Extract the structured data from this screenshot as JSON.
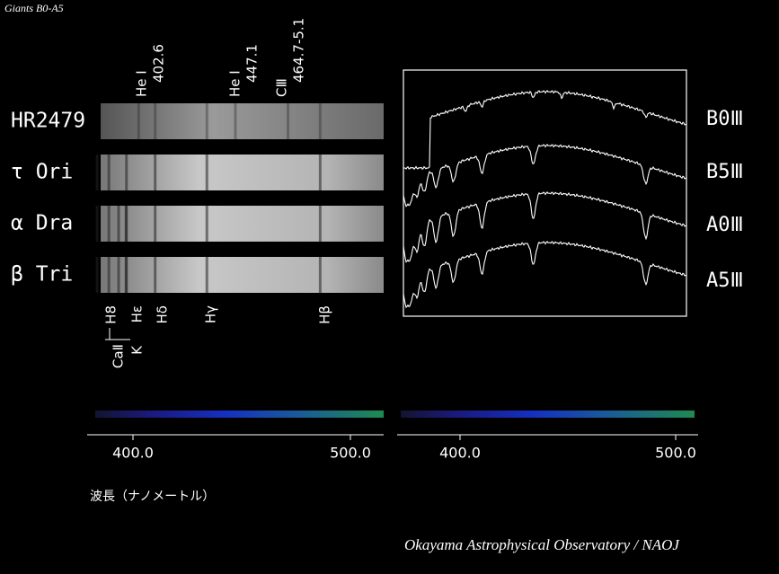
{
  "title": "Giants B0-A5",
  "stars": [
    "HR2479",
    "τ Ori",
    "α Dra",
    "β Tri"
  ],
  "classes": [
    "B0Ⅲ",
    "B5Ⅲ",
    "A0Ⅲ",
    "A5Ⅲ"
  ],
  "top_lines": [
    {
      "label": "He I",
      "wavelength": "402.6"
    },
    {
      "label": "He I",
      "wavelength": "447.1"
    },
    {
      "label": "CⅢ",
      "wavelength": "464.7-5.1"
    }
  ],
  "bottom_lines": [
    "H8",
    "CaⅡ",
    "K",
    "Hε",
    "Hδ",
    "Hγ",
    "Hβ"
  ],
  "axis_left": [
    "400.0",
    "500.0"
  ],
  "axis_right": [
    "400.0",
    "500.0"
  ],
  "axis_title": "波長（ナノメートル）",
  "credit": "Okayama Astrophysical Observatory / NAOJ"
}
